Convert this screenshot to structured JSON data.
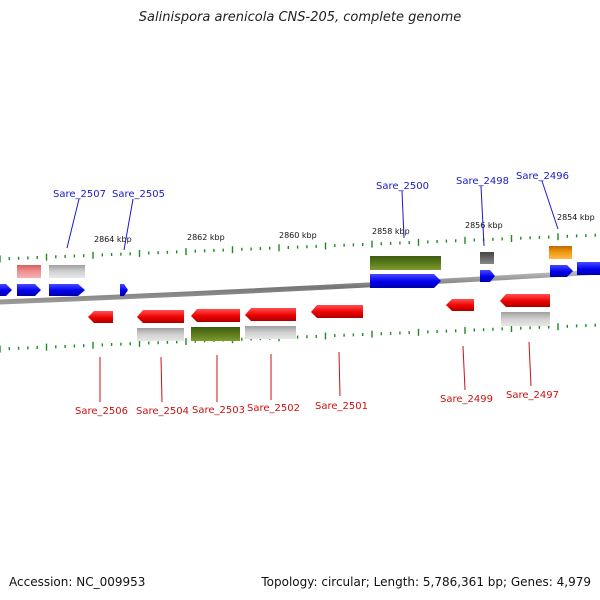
{
  "title": "Salinispora arenicola CNS-205, complete genome",
  "footer": {
    "accession": "Accession: NC_009953",
    "summary": "Topology: circular; Length: 5,786,361 bp; Genes: 4,979"
  },
  "colors": {
    "forward_cds": "#0000ee",
    "reverse_cds": "#ee0000",
    "gray_feature": "#b8b8b8",
    "olive_feature": "#5a7a1a",
    "orange_feature": "#f29a12",
    "tick": "#1f8a1f",
    "backbone": "#888888",
    "top_label": "#1a1acc",
    "bottom_label": "#cc1111"
  },
  "kbp_labels": [
    "2864 kbp",
    "2862 kbp",
    "2860 kbp",
    "2858 kbp",
    "2856 kbp",
    "2854 kbp"
  ],
  "top_genes": [
    "Sare_2507",
    "Sare_2505",
    "Sare_2500",
    "Sare_2498",
    "Sare_2496"
  ],
  "bottom_genes": [
    "Sare_2506",
    "Sare_2504",
    "Sare_2503",
    "Sare_2502",
    "Sare_2501",
    "Sare_2499",
    "Sare_2497"
  ]
}
